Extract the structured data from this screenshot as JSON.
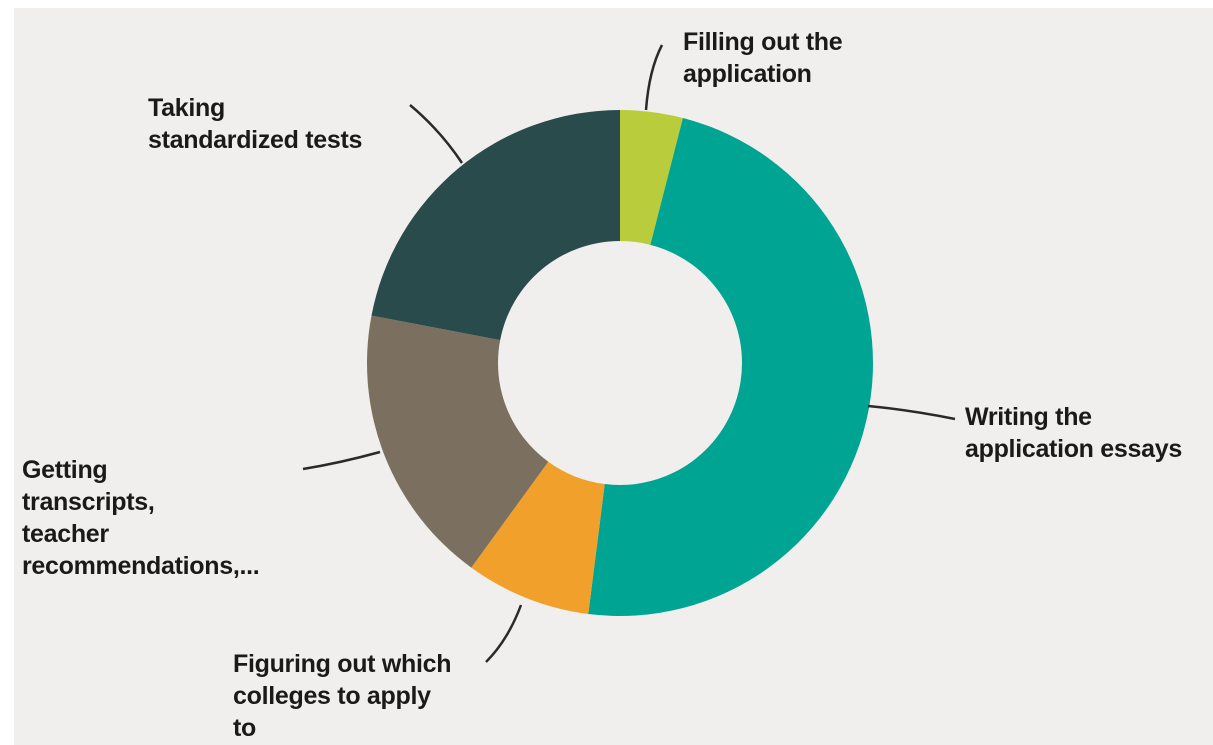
{
  "chart_data": {
    "type": "pie",
    "donut": true,
    "title": "",
    "legend": "none",
    "start_angle_deg": 0,
    "slices": [
      {
        "label": "Filling out the application",
        "lines": [
          "Filling out the",
          "application"
        ],
        "value": 4,
        "color": "#b9cc3c"
      },
      {
        "label": "Writing the application essays",
        "lines": [
          "Writing the",
          "application essays"
        ],
        "value": 48,
        "color": "#00a493"
      },
      {
        "label": "Figuring out which colleges to apply to",
        "lines": [
          "Figuring out which",
          "colleges to apply",
          "to"
        ],
        "value": 8,
        "color": "#f0a02b"
      },
      {
        "label": "Getting transcripts, teacher recommendations,...",
        "lines": [
          "Getting",
          "transcripts,",
          "teacher",
          "recommendations,..."
        ],
        "value": 18,
        "color": "#7b705f"
      },
      {
        "label": "Taking standardized tests",
        "lines": [
          "Taking",
          "standardized tests"
        ],
        "value": 22,
        "color": "#2a4b4c"
      }
    ]
  }
}
